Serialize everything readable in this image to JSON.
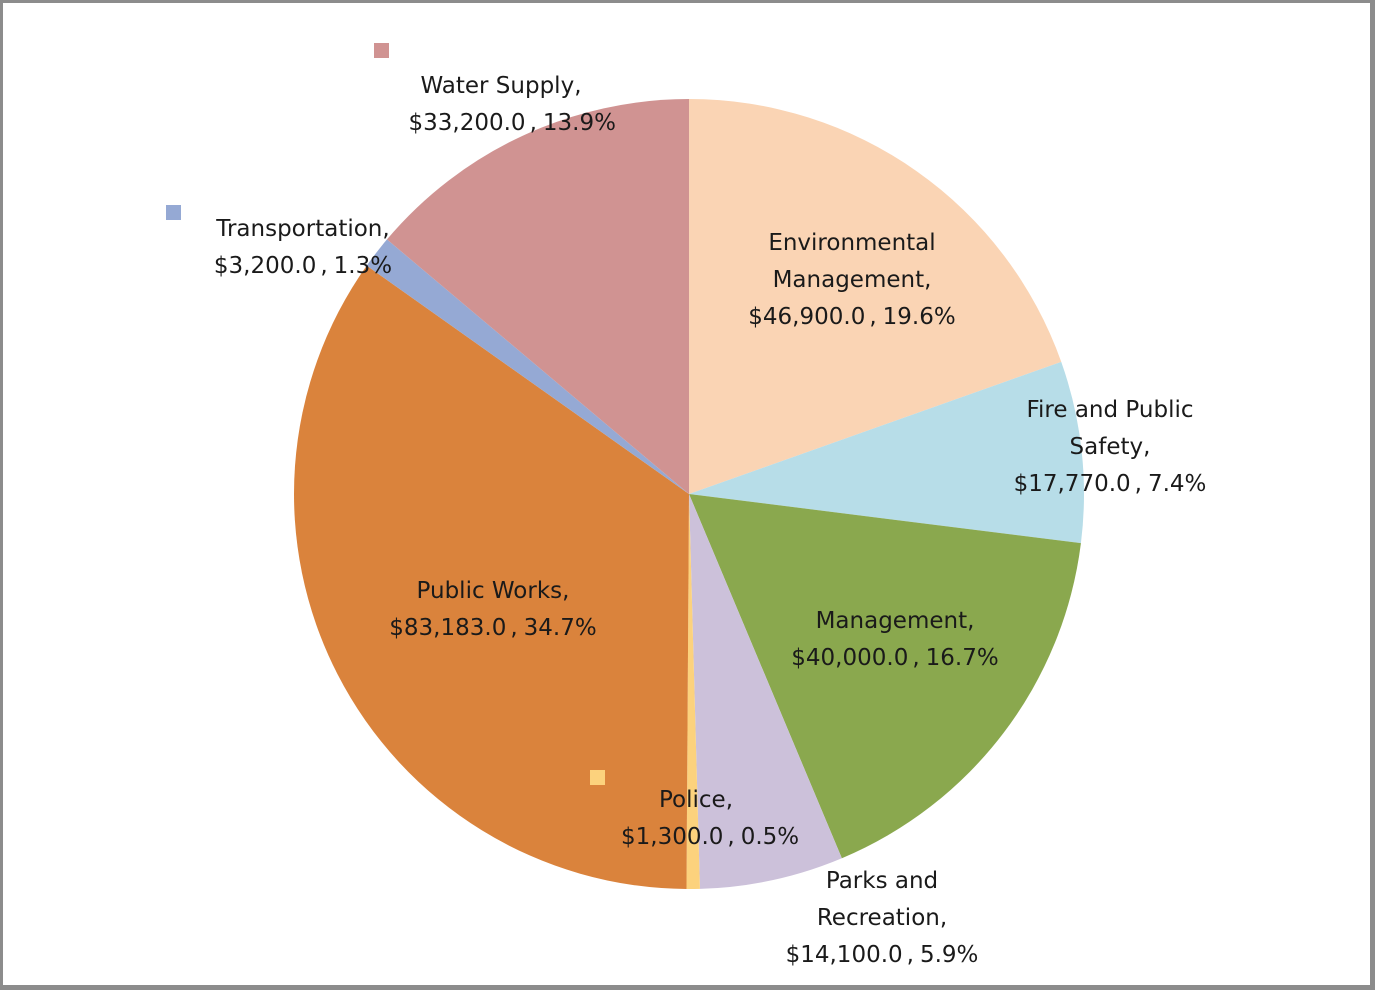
{
  "chart_data": {
    "type": "pie",
    "categories": [
      "Environmental Management",
      "Fire and Public Safety",
      "Management",
      "Parks and Recreation",
      "Police",
      "Public Works",
      "Transportation",
      "Water Supply"
    ],
    "values": [
      46900,
      17770,
      40000,
      14100,
      1300,
      83183,
      3200,
      33200
    ],
    "value_labels": [
      "$46,900.0",
      "$17,770.0",
      "$40,000.0",
      "$14,100.0",
      "$1,300.0",
      "$83,183.0",
      "$3,200.0",
      "$33,200.0"
    ],
    "percent_labels": [
      "19.6%",
      "7.4%",
      "16.7%",
      "5.9%",
      "0.5%",
      "34.7%",
      "1.3%",
      "13.9%"
    ],
    "label_separator": ",",
    "colors": [
      "#fad4b4",
      "#b7dde8",
      "#8aa84e",
      "#ccc1da",
      "#fcd27d",
      "#da833c",
      "#95a9d4",
      "#d09392"
    ]
  }
}
